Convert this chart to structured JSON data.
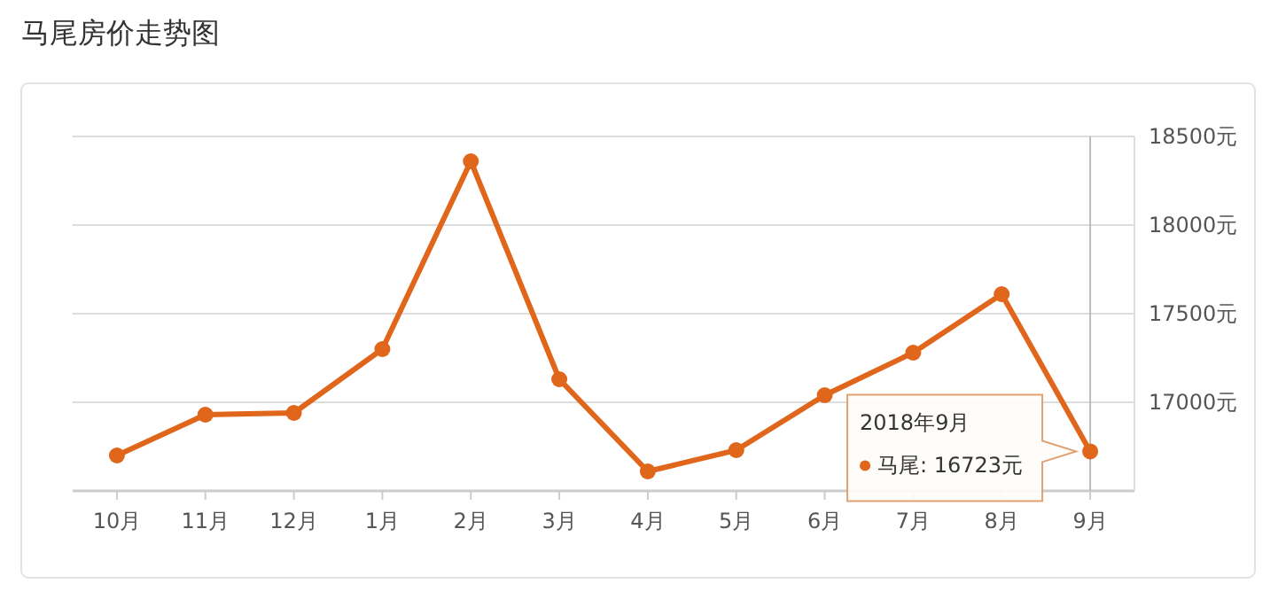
{
  "chart_data": {
    "type": "line",
    "title": "马尾房价走势图",
    "categories": [
      "10月",
      "11月",
      "12月",
      "1月",
      "2月",
      "3月",
      "4月",
      "5月",
      "6月",
      "7月",
      "8月",
      "9月"
    ],
    "series": [
      {
        "color": "#e0661b",
        "values": [
          16700,
          16930,
          16940,
          17300,
          18360,
          17130,
          16610,
          16730,
          17040,
          17280,
          17610,
          16723
        ]
      }
    ],
    "ylim": [
      16500,
      18500
    ],
    "yticks": [
      {
        "value": 17000,
        "label": "17000元"
      },
      {
        "value": 17500,
        "label": "17500元"
      },
      {
        "value": 18000,
        "label": "18000元"
      },
      {
        "value": 18500,
        "label": "18500元"
      }
    ],
    "grid": "y",
    "marker": "circle",
    "line_style": "solid",
    "ref_lines": [
      {
        "axis": "x",
        "value": "9月",
        "color": "#bbbbbb"
      }
    ],
    "annotations": [
      "2018年9月",
      "马尾: 16723元"
    ]
  }
}
